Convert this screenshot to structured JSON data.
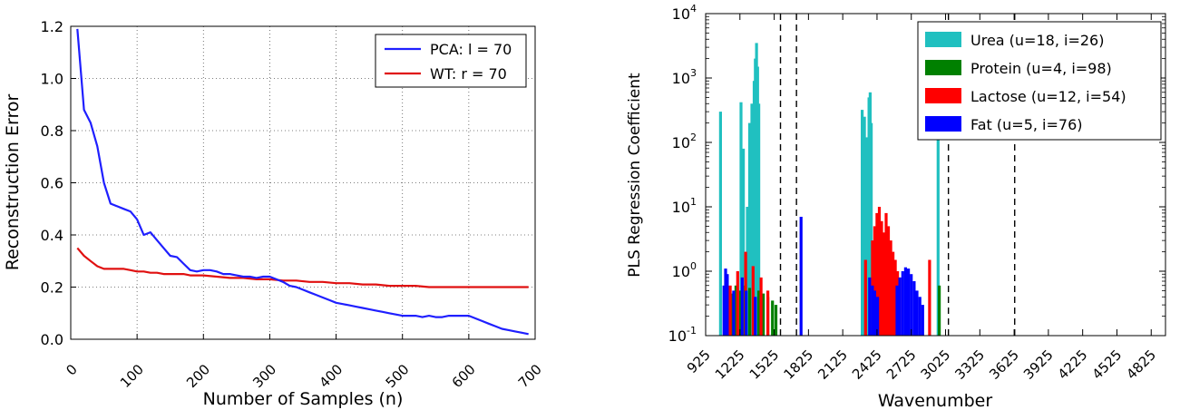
{
  "chart_data": [
    {
      "type": "line",
      "xlabel": "Number of Samples (n)",
      "ylabel": "Reconstruction Error",
      "xlim": [
        0,
        700
      ],
      "ylim": [
        0.0,
        1.2
      ],
      "xticks": [
        "0",
        "100",
        "200",
        "300",
        "400",
        "500",
        "600",
        "700"
      ],
      "yticks": [
        "0.0",
        "0.2",
        "0.4",
        "0.6",
        "0.8",
        "1.0",
        "1.2"
      ],
      "grid": true,
      "legend_position": "top-right",
      "series": [
        {
          "name": "PCA: l = 70",
          "color": "#1f1fff",
          "x": [
            10,
            20,
            30,
            40,
            50,
            60,
            70,
            80,
            90,
            100,
            110,
            120,
            130,
            140,
            150,
            160,
            170,
            180,
            190,
            200,
            210,
            220,
            230,
            240,
            250,
            260,
            270,
            280,
            290,
            300,
            310,
            320,
            330,
            340,
            350,
            360,
            370,
            380,
            390,
            400,
            410,
            420,
            430,
            440,
            450,
            460,
            470,
            480,
            490,
            500,
            510,
            520,
            530,
            540,
            550,
            560,
            570,
            580,
            590,
            600,
            610,
            620,
            630,
            640,
            650,
            660,
            670,
            680,
            690
          ],
          "y": [
            1.19,
            0.88,
            0.83,
            0.74,
            0.6,
            0.52,
            0.51,
            0.5,
            0.49,
            0.46,
            0.4,
            0.41,
            0.38,
            0.35,
            0.32,
            0.315,
            0.29,
            0.265,
            0.26,
            0.265,
            0.265,
            0.26,
            0.25,
            0.25,
            0.245,
            0.24,
            0.24,
            0.235,
            0.24,
            0.24,
            0.23,
            0.22,
            0.205,
            0.2,
            0.19,
            0.18,
            0.17,
            0.16,
            0.15,
            0.14,
            0.135,
            0.13,
            0.125,
            0.12,
            0.115,
            0.11,
            0.105,
            0.1,
            0.095,
            0.09,
            0.09,
            0.09,
            0.085,
            0.09,
            0.085,
            0.085,
            0.09,
            0.09,
            0.09,
            0.09,
            0.08,
            0.07,
            0.06,
            0.05,
            0.04,
            0.035,
            0.03,
            0.025,
            0.02
          ]
        },
        {
          "name": "WT: r = 70",
          "color": "#e01010",
          "x": [
            10,
            20,
            30,
            40,
            50,
            60,
            70,
            80,
            90,
            100,
            110,
            120,
            130,
            140,
            150,
            160,
            170,
            180,
            190,
            200,
            220,
            240,
            260,
            280,
            300,
            320,
            340,
            360,
            380,
            400,
            420,
            440,
            460,
            480,
            500,
            520,
            540,
            560,
            580,
            600,
            620,
            640,
            660,
            680,
            690
          ],
          "y": [
            0.35,
            0.32,
            0.3,
            0.28,
            0.27,
            0.27,
            0.27,
            0.27,
            0.265,
            0.26,
            0.26,
            0.255,
            0.255,
            0.25,
            0.25,
            0.25,
            0.25,
            0.245,
            0.245,
            0.245,
            0.24,
            0.235,
            0.235,
            0.23,
            0.23,
            0.225,
            0.225,
            0.22,
            0.22,
            0.215,
            0.215,
            0.21,
            0.21,
            0.205,
            0.205,
            0.205,
            0.2,
            0.2,
            0.2,
            0.2,
            0.2,
            0.2,
            0.2,
            0.2,
            0.2
          ]
        }
      ]
    },
    {
      "type": "bar",
      "xlabel": "Wavenumber",
      "ylabel": "PLS Regression Coefficient",
      "y_scale": "log",
      "xlim": [
        925,
        4950
      ],
      "ylim": [
        0.1,
        10000
      ],
      "xticks": [
        "925",
        "1225",
        "1525",
        "1825",
        "2125",
        "2425",
        "2725",
        "3025",
        "3325",
        "3625",
        "3925",
        "4225",
        "4525",
        "4825"
      ],
      "yticks": [
        "10^-1",
        "10^0",
        "10^1",
        "10^2",
        "10^3",
        "10^4"
      ],
      "vertical_dashed_lines": [
        1580,
        1720,
        3050,
        3630
      ],
      "legend_position": "top-right",
      "series": [
        {
          "name": "Urea (u=18, i=26)",
          "color": "#20c0c0",
          "x": [
            1055,
            1235,
            1255,
            1290,
            1310,
            1330,
            1350,
            1360,
            1370,
            1380,
            1390,
            2295,
            2315,
            2335,
            2355,
            2365,
            2375,
            2960
          ],
          "y": [
            300,
            420,
            80,
            10,
            200,
            400,
            900,
            2000,
            3500,
            1500,
            400,
            320,
            250,
            120,
            500,
            600,
            200,
            200
          ]
        },
        {
          "name": "Protein (u=4, i=98)",
          "color": "#008000",
          "x": [
            1110,
            1150,
            1190,
            1230,
            1270,
            1310,
            1350,
            1390,
            1430,
            1470,
            1510,
            1540,
            2970
          ],
          "y": [
            0.3,
            0.45,
            0.6,
            0.5,
            0.6,
            0.55,
            0.4,
            0.5,
            0.45,
            0.4,
            0.35,
            0.3,
            0.6
          ]
        },
        {
          "name": "Lactose (u=12, i=54)",
          "color": "#ff0000",
          "x": [
            1140,
            1205,
            1275,
            1340,
            1410,
            1470,
            2325,
            2385,
            2405,
            2425,
            2445,
            2465,
            2485,
            2505,
            2525,
            2545,
            2565,
            2585,
            2605,
            2625,
            2885
          ],
          "y": [
            0.6,
            1.0,
            2.0,
            1.2,
            0.8,
            0.5,
            1.5,
            3.0,
            5.0,
            8.0,
            10.0,
            6.0,
            4.0,
            8.0,
            5.0,
            3.0,
            2.0,
            1.5,
            1.0,
            0.8,
            1.5
          ]
        },
        {
          "name": "Fat (u=5, i=76)",
          "color": "#0000ff",
          "x": [
            1085,
            1100,
            1115,
            1170,
            1245,
            1280,
            1360,
            1760,
            2360,
            2385,
            2405,
            2430,
            2600,
            2625,
            2650,
            2675,
            2700,
            2725,
            2750,
            2775,
            2800,
            2825
          ],
          "y": [
            0.6,
            1.1,
            0.9,
            0.5,
            0.8,
            0.5,
            0.4,
            7.0,
            0.8,
            0.6,
            0.5,
            0.4,
            0.6,
            0.8,
            1.0,
            1.15,
            1.1,
            0.9,
            0.7,
            0.5,
            0.4,
            0.3
          ]
        }
      ]
    }
  ]
}
